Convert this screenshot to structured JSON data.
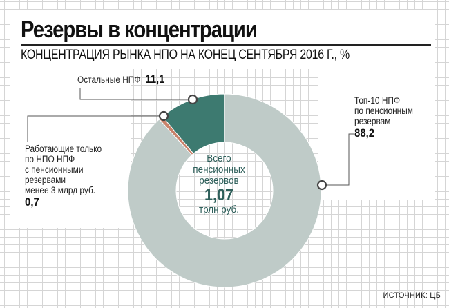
{
  "title": "Резервы в концентрации",
  "subtitle": "КОНЦЕНТРАЦИЯ РЫНКА НПО НА КОНЕЦ СЕНТЯБРЯ 2016 Г., %",
  "source": "ИСТОЧНИК: ЦБ",
  "center": {
    "line1": "Всего",
    "line2": "пенсионных",
    "line3": "резервов",
    "value": "1,07",
    "unit": "трлн руб."
  },
  "labels": {
    "top10": {
      "line1": "Топ-10 НПФ",
      "line2": "по пенсионным",
      "line3": "резервам",
      "value": "88,2"
    },
    "others": {
      "text": "Остальные НПФ",
      "value": "11,1"
    },
    "small": {
      "line1": "Работающие только",
      "line2": "по НПО НПФ",
      "line3": "с пенсионными",
      "line4": "резервами",
      "line5": "менее 3 млрд руб.",
      "value": "0,7"
    }
  },
  "chart_data": {
    "type": "pie",
    "variant": "donut",
    "title": "Резервы в концентрации",
    "subtitle": "КОНЦЕНТРАЦИЯ РЫНКА НПО НА КОНЕЦ СЕНТЯБРЯ 2016 Г., %",
    "slices": [
      {
        "label": "Топ-10 НПФ по пенсионным резервам",
        "value": 88.2,
        "color": "#bfcbc8"
      },
      {
        "label": "Работающие только по НПО НПФ с пенсионными резервами менее 3 млрд руб.",
        "value": 0.7,
        "color": "#c9826a"
      },
      {
        "label": "Остальные НПФ",
        "value": 11.1,
        "color": "#3d7a70"
      }
    ],
    "center_total": "1,07 трлн руб."
  },
  "colors": {
    "grid": "#d5d5d5",
    "leader": "#555555",
    "center_text": "#2e5f5a"
  }
}
